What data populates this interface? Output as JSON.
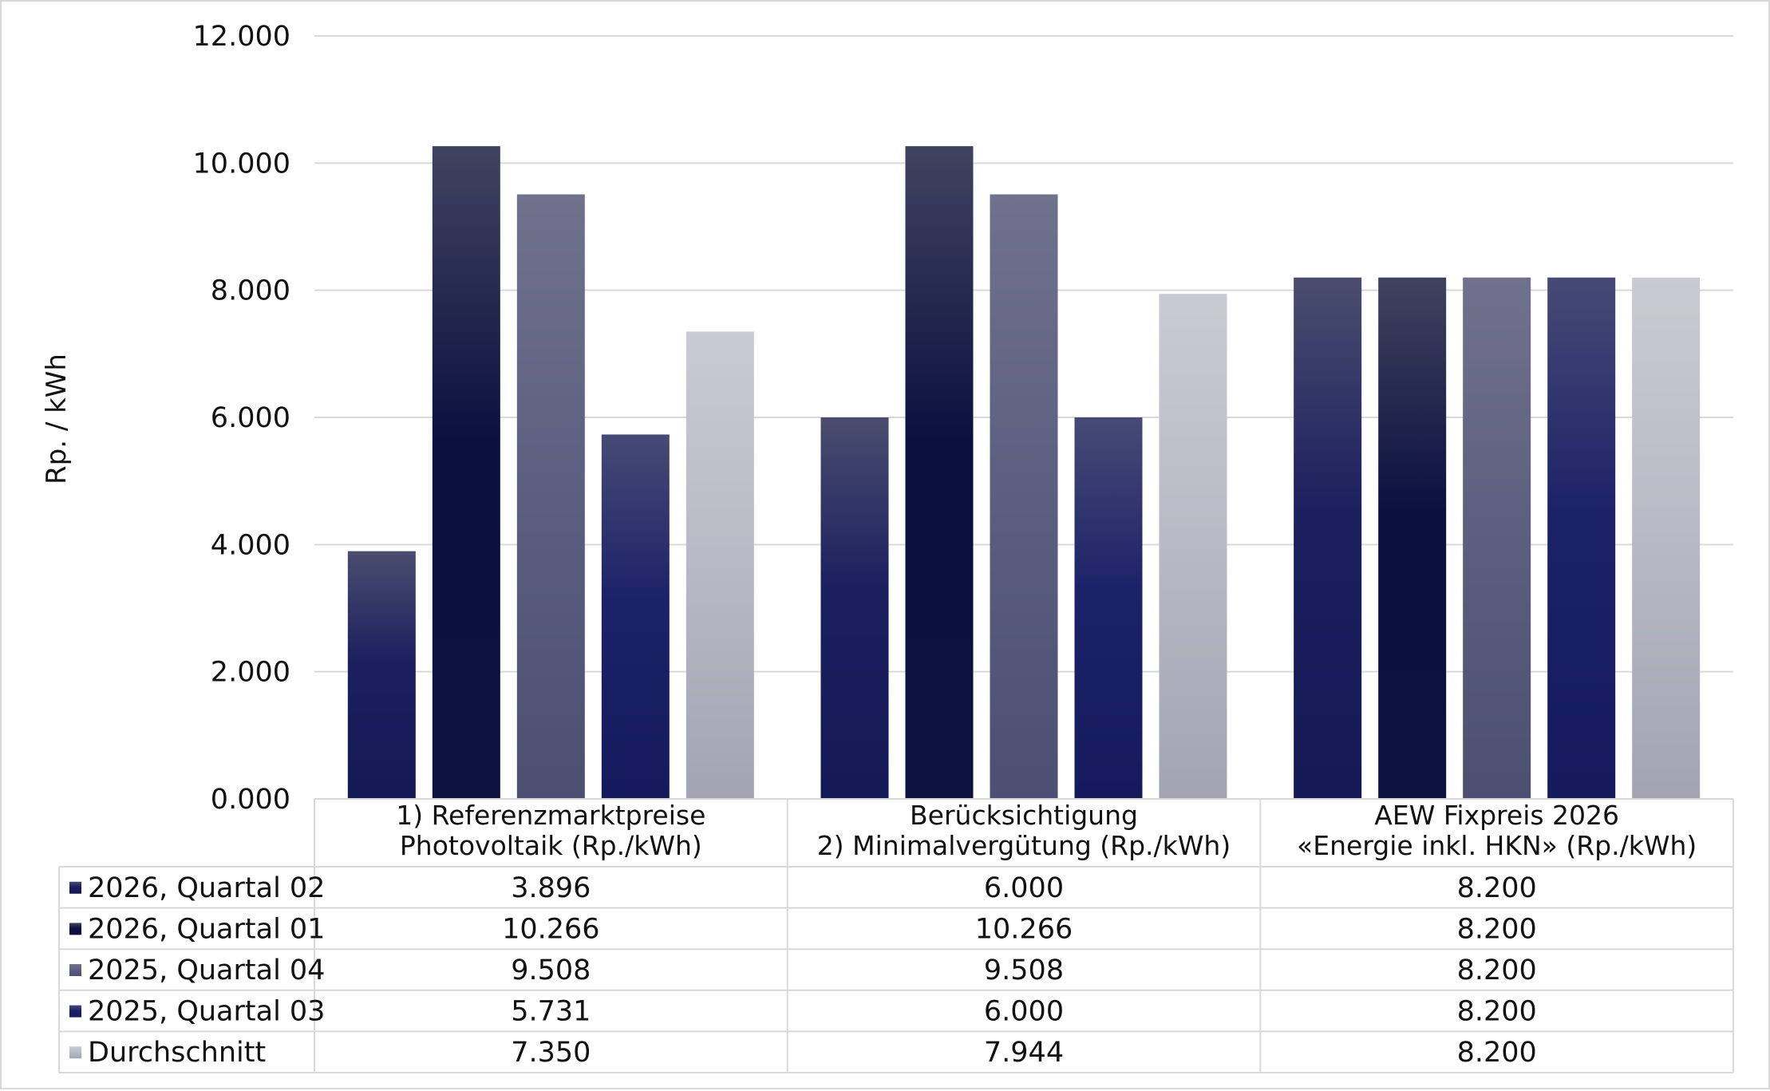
{
  "chart_data": {
    "type": "bar",
    "ylabel": "Rp. / kWh",
    "ylim": [
      0,
      12
    ],
    "yticks": [
      0,
      2,
      4,
      6,
      8,
      10,
      12
    ],
    "ytick_labels": [
      "0.000",
      "2.000",
      "4.000",
      "6.000",
      "8.000",
      "10.000",
      "12.000"
    ],
    "grid": true,
    "legend": "data-table-below",
    "categories": [
      [
        "1) Referenzmarktpreise",
        "Photovoltaik (Rp./kWh)"
      ],
      [
        "Berücksichtigung",
        "2) Minimalvergütung (Rp./kWh)"
      ],
      [
        "AEW Fixpreis 2026",
        "«Energie inkl. HKN» (Rp./kWh)"
      ]
    ],
    "series": [
      {
        "name": "2026, Quartal 02",
        "values": [
          3.896,
          6.0,
          8.2
        ],
        "labels": [
          "3.896",
          "6.000",
          "8.200"
        ],
        "color_top": "#4a4d6e",
        "color_mid": "#1a1f5e",
        "color_bottom": "#141a55"
      },
      {
        "name": "2026, Quartal 01",
        "values": [
          10.266,
          10.266,
          8.2
        ],
        "labels": [
          "10.266",
          "10.266",
          "8.200"
        ],
        "color_top": "#40435f",
        "color_mid": "#0b1040",
        "color_bottom": "#0c1140"
      },
      {
        "name": "2025, Quartal 04",
        "values": [
          9.508,
          9.508,
          8.2
        ],
        "labels": [
          "9.508",
          "9.508",
          "8.200"
        ],
        "color_top": "#70728c",
        "color_mid": "#5d6080",
        "color_bottom": "#4c4f72"
      },
      {
        "name": "2025, Quartal 03",
        "values": [
          5.731,
          6.0,
          8.2
        ],
        "labels": [
          "5.731",
          "6.000",
          "8.200"
        ],
        "color_top": "#464a75",
        "color_mid": "#1c2268",
        "color_bottom": "#141a5c"
      },
      {
        "name": "Durchschnitt",
        "values": [
          7.35,
          7.944,
          8.2
        ],
        "labels": [
          "7.350",
          "7.944",
          "8.200"
        ],
        "color_top": "#c9cad2",
        "color_mid": "#babbc6",
        "color_bottom": "#a3a4b2"
      }
    ]
  }
}
